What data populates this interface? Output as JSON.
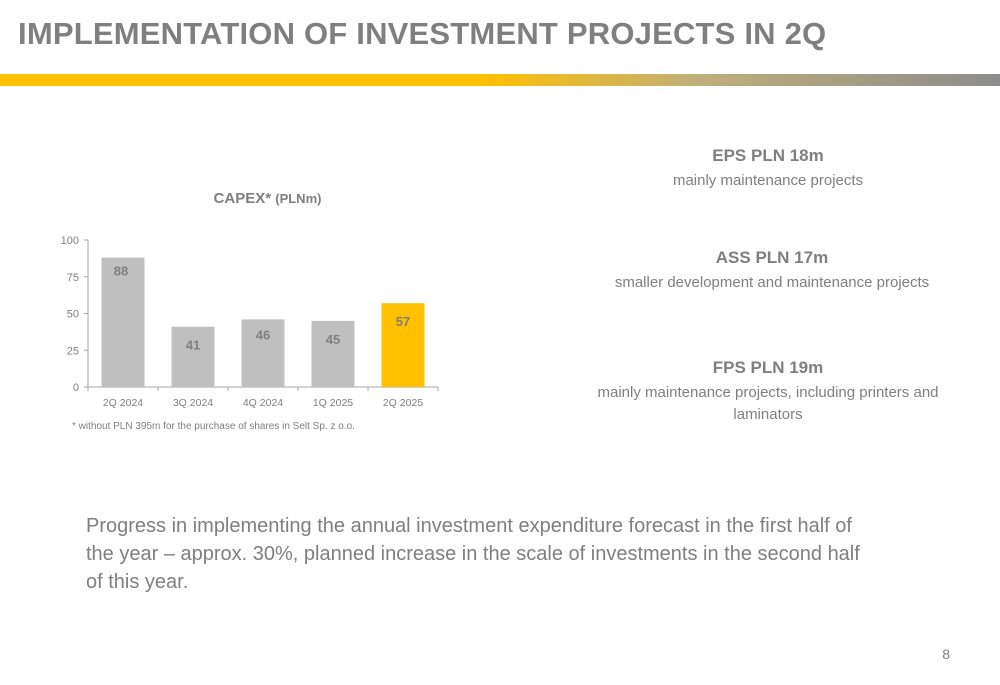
{
  "slide": {
    "title": "IMPLEMENTATION OF INVESTMENT PROJECTS IN 2Q",
    "page_number": "8",
    "accent_color": "#ffc000",
    "text_color": "#7f7f7f"
  },
  "chart_data": {
    "type": "bar",
    "title": "CAPEX*",
    "title_unit": "(PLNm)",
    "categories": [
      "2Q 2024",
      "3Q 2024",
      "4Q 2024",
      "1Q 2025",
      "2Q 2025"
    ],
    "values": [
      88,
      41,
      46,
      45,
      57
    ],
    "data_labels": [
      "88",
      "41",
      "46",
      "45",
      "57"
    ],
    "highlight_index": 4,
    "bar_color": "#bfbfbf",
    "highlight_color": "#ffc000",
    "ylim": [
      0,
      100
    ],
    "yticks": [
      0,
      25,
      50,
      75,
      100
    ],
    "grid": false,
    "xlabel": "",
    "ylabel": ""
  },
  "footnote": "* without PLN 395m for the purchase of shares in Selt Sp. z o.o.",
  "segments": [
    {
      "head": "EPS PLN 18m",
      "desc": "mainly maintenance projects"
    },
    {
      "head": "ASS PLN 17m",
      "desc": "smaller development and maintenance projects"
    },
    {
      "head": "FPS PLN 19m",
      "desc": "mainly maintenance projects, including printers and laminators"
    }
  ],
  "summary": "Progress in implementing the annual investment expenditure forecast in the first half of the year – approx. 30%, planned increase in the scale of investments in the second half of this year."
}
